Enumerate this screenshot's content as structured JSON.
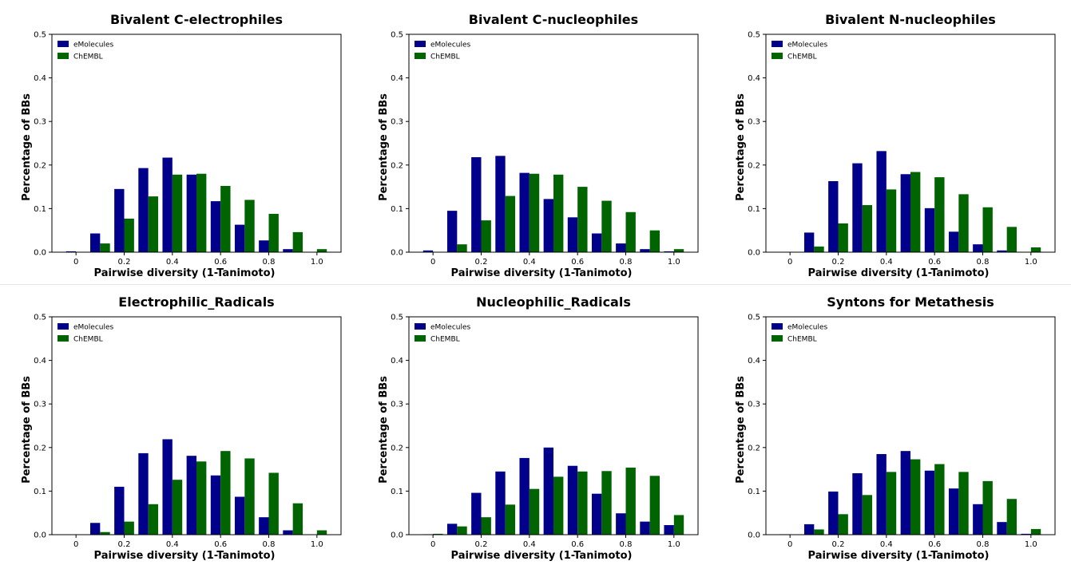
{
  "colors": {
    "eMolecules": "#00008B",
    "ChEMBL": "#006400"
  },
  "chart_data": [
    {
      "type": "bar",
      "title": "Bivalent C-electrophiles",
      "xlabel": "Pairwise diversity (1-Tanimoto)",
      "ylabel": "Percentage of BBs",
      "ylim": [
        0,
        0.5
      ],
      "xlim": [
        -0.1,
        1.1
      ],
      "x": [
        0.0,
        0.1,
        0.2,
        0.3,
        0.4,
        0.5,
        0.6,
        0.7,
        0.8,
        0.9,
        1.0
      ],
      "xticks": [
        "0",
        "0.2",
        "0.4",
        "0.6",
        "0.8",
        "1.0"
      ],
      "yticks": [
        "0.0",
        "0.1",
        "0.2",
        "0.3",
        "0.4",
        "0.5"
      ],
      "legend": "top-left",
      "series": [
        {
          "name": "eMolecules",
          "values": [
            0.002,
            0.043,
            0.145,
            0.193,
            0.217,
            0.178,
            0.117,
            0.063,
            0.027,
            0.007,
            0.0
          ]
        },
        {
          "name": "ChEMBL",
          "values": [
            0.0,
            0.02,
            0.077,
            0.128,
            0.178,
            0.18,
            0.152,
            0.12,
            0.088,
            0.046,
            0.007
          ]
        }
      ]
    },
    {
      "type": "bar",
      "title": "Bivalent C-nucleophiles",
      "xlabel": "Pairwise diversity (1-Tanimoto)",
      "ylabel": "Percentage of BBs",
      "ylim": [
        0,
        0.5
      ],
      "xlim": [
        -0.1,
        1.1
      ],
      "x": [
        0.0,
        0.1,
        0.2,
        0.3,
        0.4,
        0.5,
        0.6,
        0.7,
        0.8,
        0.9,
        1.0
      ],
      "xticks": [
        "0",
        "0.2",
        "0.4",
        "0.6",
        "0.8",
        "1.0"
      ],
      "yticks": [
        "0.0",
        "0.1",
        "0.2",
        "0.3",
        "0.4",
        "0.5"
      ],
      "legend": "top-left",
      "series": [
        {
          "name": "eMolecules",
          "values": [
            0.004,
            0.095,
            0.218,
            0.221,
            0.182,
            0.122,
            0.08,
            0.043,
            0.02,
            0.007,
            0.002
          ]
        },
        {
          "name": "ChEMBL",
          "values": [
            0.0,
            0.018,
            0.073,
            0.129,
            0.18,
            0.178,
            0.15,
            0.118,
            0.092,
            0.05,
            0.007
          ]
        }
      ]
    },
    {
      "type": "bar",
      "title": "Bivalent N-nucleophiles",
      "xlabel": "Pairwise diversity (1-Tanimoto)",
      "ylabel": "Percentage of BBs",
      "ylim": [
        0,
        0.5
      ],
      "xlim": [
        -0.1,
        1.1
      ],
      "x": [
        0.0,
        0.1,
        0.2,
        0.3,
        0.4,
        0.5,
        0.6,
        0.7,
        0.8,
        0.9,
        1.0
      ],
      "xticks": [
        "0",
        "0.2",
        "0.4",
        "0.6",
        "0.8",
        "1.0"
      ],
      "yticks": [
        "0.0",
        "0.1",
        "0.2",
        "0.3",
        "0.4",
        "0.5"
      ],
      "legend": "top-left",
      "series": [
        {
          "name": "eMolecules",
          "values": [
            0.0,
            0.045,
            0.163,
            0.204,
            0.232,
            0.179,
            0.101,
            0.047,
            0.018,
            0.004,
            0.0
          ]
        },
        {
          "name": "ChEMBL",
          "values": [
            0.0,
            0.013,
            0.066,
            0.108,
            0.144,
            0.184,
            0.172,
            0.133,
            0.103,
            0.058,
            0.011
          ]
        }
      ]
    },
    {
      "type": "bar",
      "title": "Electrophilic_Radicals",
      "xlabel": "Pairwise diversity (1-Tanimoto)",
      "ylabel": "Percentage of BBs",
      "ylim": [
        0,
        0.5
      ],
      "xlim": [
        -0.1,
        1.1
      ],
      "x": [
        0.0,
        0.1,
        0.2,
        0.3,
        0.4,
        0.5,
        0.6,
        0.7,
        0.8,
        0.9,
        1.0
      ],
      "xticks": [
        "0",
        "0.2",
        "0.4",
        "0.6",
        "0.8",
        "1.0"
      ],
      "yticks": [
        "0.0",
        "0.1",
        "0.2",
        "0.3",
        "0.4",
        "0.5"
      ],
      "legend": "top-left",
      "series": [
        {
          "name": "eMolecules",
          "values": [
            0.0,
            0.027,
            0.11,
            0.187,
            0.219,
            0.181,
            0.136,
            0.087,
            0.04,
            0.01,
            0.0
          ]
        },
        {
          "name": "ChEMBL",
          "values": [
            0.0,
            0.006,
            0.03,
            0.07,
            0.126,
            0.168,
            0.192,
            0.175,
            0.142,
            0.072,
            0.01
          ]
        }
      ]
    },
    {
      "type": "bar",
      "title": "Nucleophilic_Radicals",
      "xlabel": "Pairwise diversity (1-Tanimoto)",
      "ylabel": "Percentage of BBs",
      "ylim": [
        0,
        0.5
      ],
      "xlim": [
        -0.1,
        1.1
      ],
      "x": [
        0.0,
        0.1,
        0.2,
        0.3,
        0.4,
        0.5,
        0.6,
        0.7,
        0.8,
        0.9,
        1.0
      ],
      "xticks": [
        "0",
        "0.2",
        "0.4",
        "0.6",
        "0.8",
        "1.0"
      ],
      "yticks": [
        "0.0",
        "0.1",
        "0.2",
        "0.3",
        "0.4",
        "0.5"
      ],
      "legend": "top-left",
      "series": [
        {
          "name": "eMolecules",
          "values": [
            0.001,
            0.025,
            0.096,
            0.145,
            0.176,
            0.2,
            0.158,
            0.094,
            0.049,
            0.03,
            0.022
          ]
        },
        {
          "name": "ChEMBL",
          "values": [
            0.002,
            0.019,
            0.04,
            0.069,
            0.105,
            0.133,
            0.145,
            0.146,
            0.154,
            0.135,
            0.045
          ]
        }
      ]
    },
    {
      "type": "bar",
      "title": "Syntons for Metathesis",
      "xlabel": "Pairwise diversity (1-Tanimoto)",
      "ylabel": "Percentage of BBs",
      "ylim": [
        0,
        0.5
      ],
      "xlim": [
        -0.1,
        1.1
      ],
      "x": [
        0.0,
        0.1,
        0.2,
        0.3,
        0.4,
        0.5,
        0.6,
        0.7,
        0.8,
        0.9,
        1.0
      ],
      "xticks": [
        "0",
        "0.2",
        "0.4",
        "0.6",
        "0.8",
        "1.0"
      ],
      "yticks": [
        "0.0",
        "0.1",
        "0.2",
        "0.3",
        "0.4",
        "0.5"
      ],
      "legend": "top-left",
      "series": [
        {
          "name": "eMolecules",
          "values": [
            0.001,
            0.024,
            0.099,
            0.141,
            0.185,
            0.192,
            0.147,
            0.106,
            0.07,
            0.029,
            0.002
          ]
        },
        {
          "name": "ChEMBL",
          "values": [
            0.0,
            0.012,
            0.047,
            0.091,
            0.144,
            0.173,
            0.162,
            0.144,
            0.123,
            0.082,
            0.013
          ]
        }
      ]
    }
  ]
}
